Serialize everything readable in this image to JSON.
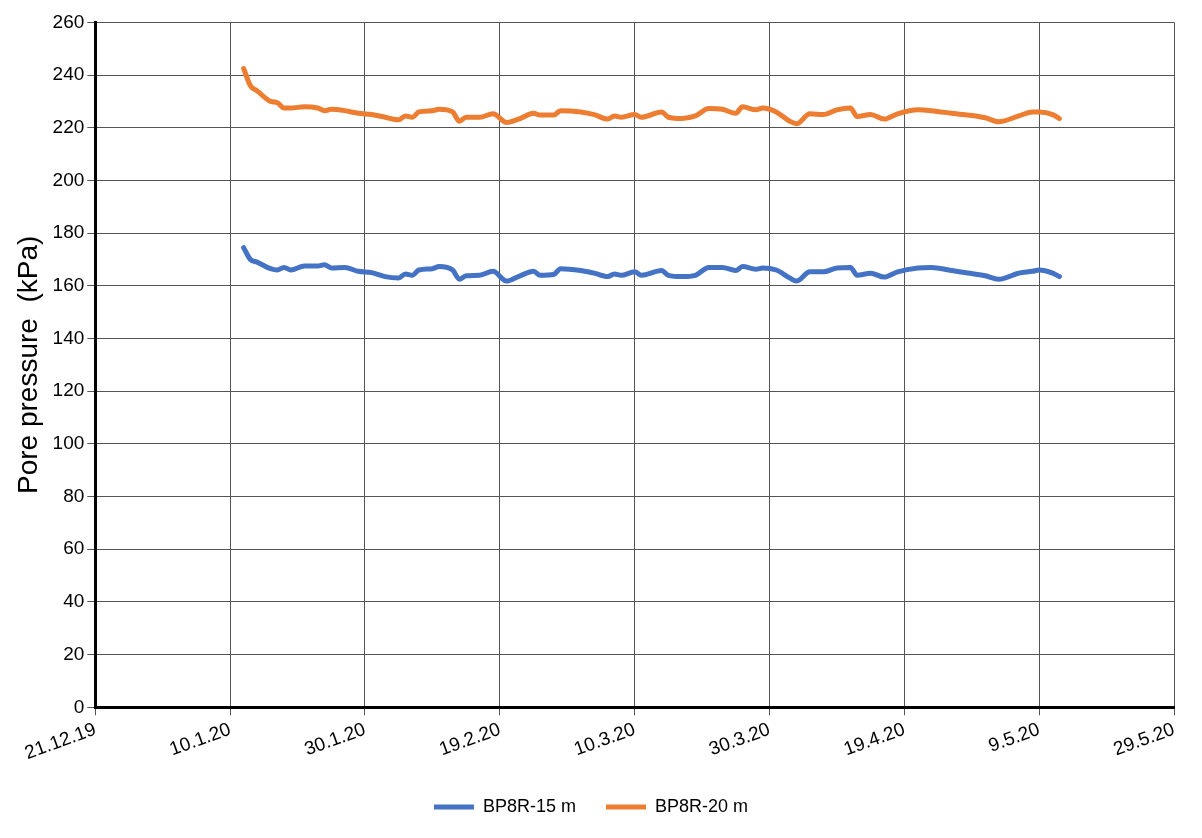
{
  "chart_data": {
    "type": "line",
    "ylabel": "Pore pressure  (kPa)",
    "xlim": [
      "2019-12-21",
      "2020-05-29"
    ],
    "xticks": [
      {
        "value": "2019-12-21",
        "label": "21.12.19"
      },
      {
        "value": "2020-01-10",
        "label": "10.1.20"
      },
      {
        "value": "2020-01-30",
        "label": "30.1.20"
      },
      {
        "value": "2020-02-19",
        "label": "19.2.20"
      },
      {
        "value": "2020-03-10",
        "label": "10.3.20"
      },
      {
        "value": "2020-03-30",
        "label": "30.3.20"
      },
      {
        "value": "2020-04-19",
        "label": "19.4.20"
      },
      {
        "value": "2020-05-09",
        "label": "9.5.20"
      },
      {
        "value": "2020-05-29",
        "label": "29.5.20"
      }
    ],
    "ylim": [
      0,
      260
    ],
    "yticks": [
      0,
      20,
      40,
      60,
      80,
      100,
      120,
      140,
      160,
      180,
      200,
      220,
      240,
      260
    ],
    "grid": true,
    "legend": "bottom",
    "marker": "none",
    "line_style": "solid",
    "x": [
      "2020-01-12",
      "2020-01-13",
      "2020-01-14",
      "2020-01-16",
      "2020-01-17",
      "2020-01-18",
      "2020-01-19",
      "2020-01-21",
      "2020-01-23",
      "2020-01-24",
      "2020-01-25",
      "2020-01-27",
      "2020-01-29",
      "2020-01-31",
      "2020-02-02",
      "2020-02-04",
      "2020-02-05",
      "2020-02-06",
      "2020-02-07",
      "2020-02-09",
      "2020-02-10",
      "2020-02-12",
      "2020-02-13",
      "2020-02-14",
      "2020-02-16",
      "2020-02-18",
      "2020-02-20",
      "2020-02-22",
      "2020-02-24",
      "2020-02-25",
      "2020-02-27",
      "2020-02-28",
      "2020-03-02",
      "2020-03-04",
      "2020-03-06",
      "2020-03-07",
      "2020-03-08",
      "2020-03-10",
      "2020-03-11",
      "2020-03-14",
      "2020-03-15",
      "2020-03-17",
      "2020-03-19",
      "2020-03-21",
      "2020-03-23",
      "2020-03-25",
      "2020-03-26",
      "2020-03-28",
      "2020-03-29",
      "2020-03-31",
      "2020-04-02",
      "2020-04-03",
      "2020-04-05",
      "2020-04-07",
      "2020-04-09",
      "2020-04-11",
      "2020-04-12",
      "2020-04-14",
      "2020-04-16",
      "2020-04-18",
      "2020-04-21",
      "2020-04-23",
      "2020-04-26",
      "2020-05-01",
      "2020-05-03",
      "2020-05-06",
      "2020-05-08",
      "2020-05-09",
      "2020-05-11",
      "2020-05-12"
    ],
    "series": [
      {
        "name": "BP8R-15 m",
        "color": "#4472c4",
        "values": [
          174.5,
          170,
          169,
          166.5,
          166,
          167,
          166,
          167.5,
          167.5,
          168,
          166.8,
          167,
          165.5,
          165,
          163.5,
          163,
          164.5,
          164,
          166,
          166.5,
          167.3,
          166,
          162.5,
          163.8,
          164,
          165.5,
          161.8,
          163.8,
          165.5,
          164,
          164.3,
          166.5,
          165.8,
          164.8,
          163.5,
          164.5,
          164,
          165.3,
          164,
          165.8,
          164,
          163.5,
          164,
          167,
          167,
          165.8,
          167.3,
          166.3,
          166.8,
          166,
          163,
          161.8,
          165.3,
          165.3,
          166.8,
          167,
          164,
          164.8,
          163.3,
          165.3,
          166.8,
          167,
          165.8,
          163.8,
          162.5,
          164.8,
          165.5,
          166,
          164.8,
          163.5
        ]
      },
      {
        "name": "BP8R-20 m",
        "color": "#ed7d31",
        "values": [
          242.5,
          236,
          234,
          230,
          229.5,
          227.5,
          227.5,
          228,
          227.5,
          226.5,
          227,
          226.5,
          225.5,
          225,
          224,
          223,
          224.5,
          224,
          226,
          226.5,
          227,
          226,
          222.5,
          224,
          224,
          225.3,
          222,
          223.5,
          225.5,
          224.8,
          224.8,
          226.5,
          226,
          225,
          223.3,
          224.5,
          224,
          225,
          224,
          226,
          224,
          223.5,
          224.5,
          227.3,
          227,
          225.5,
          228,
          226.8,
          227.5,
          226,
          222.5,
          221.5,
          225.3,
          225,
          226.8,
          227.5,
          224.3,
          225,
          223.3,
          225.3,
          226.8,
          226.5,
          225.5,
          223.8,
          222.3,
          224.5,
          226,
          226,
          225,
          223.5
        ]
      }
    ]
  }
}
